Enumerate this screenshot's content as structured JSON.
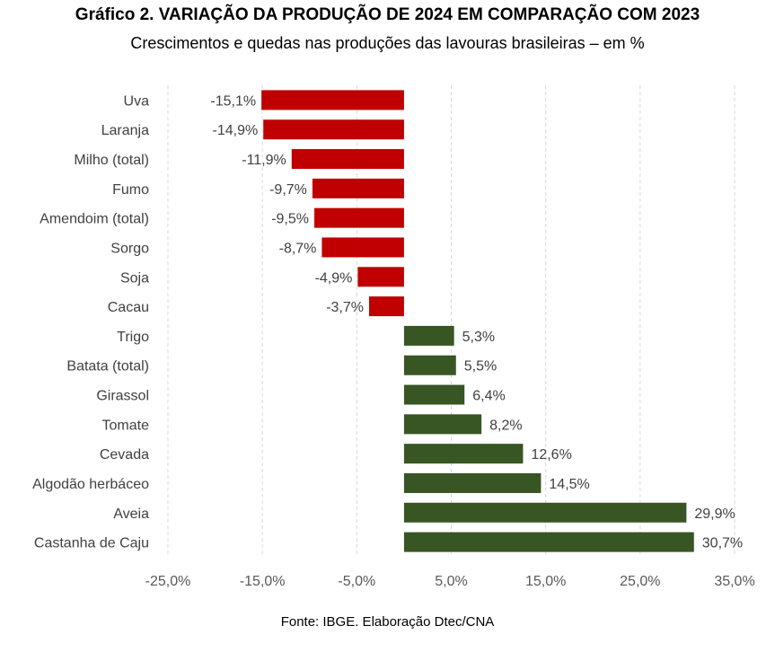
{
  "chart_data": {
    "type": "bar",
    "orientation": "horizontal",
    "title": "Gráfico 2. VARIAÇÃO DA PRODUÇÃO DE 2024 EM COMPARAÇÃO COM 2023",
    "subtitle": "Crescimentos e quedas nas produções das lavouras brasileiras – em %",
    "source": "Fonte: IBGE. Elaboração Dtec/CNA",
    "categories": [
      "Uva",
      "Laranja",
      "Milho (total)",
      "Fumo",
      "Amendoim (total)",
      "Sorgo",
      "Soja",
      "Cacau",
      "Trigo",
      "Batata (total)",
      "Girassol",
      "Tomate",
      "Cevada",
      "Algodão herbáceo",
      "Aveia",
      "Castanha de Caju"
    ],
    "values": [
      -15.1,
      -14.9,
      -11.9,
      -9.7,
      -9.5,
      -8.7,
      -4.9,
      -3.7,
      5.3,
      5.5,
      6.4,
      8.2,
      12.6,
      14.5,
      29.9,
      30.7
    ],
    "value_labels": [
      "-15,1%",
      "-14,9%",
      "-11,9%",
      "-9,7%",
      "-9,5%",
      "-8,7%",
      "-4,9%",
      "-3,7%",
      "5,3%",
      "5,5%",
      "6,4%",
      "8,2%",
      "12,6%",
      "14,5%",
      "29,9%",
      "30,7%"
    ],
    "xlim": [
      -25,
      35
    ],
    "xticks": [
      -25,
      -15,
      -5,
      5,
      15,
      25,
      35
    ],
    "xtick_labels": [
      "-25,0%",
      "-15,0%",
      "-5,0%",
      "5,0%",
      "15,0%",
      "25,0%",
      "35,0%"
    ],
    "grid": true,
    "colors": {
      "negative": "#c00000",
      "positive": "#375623"
    }
  }
}
